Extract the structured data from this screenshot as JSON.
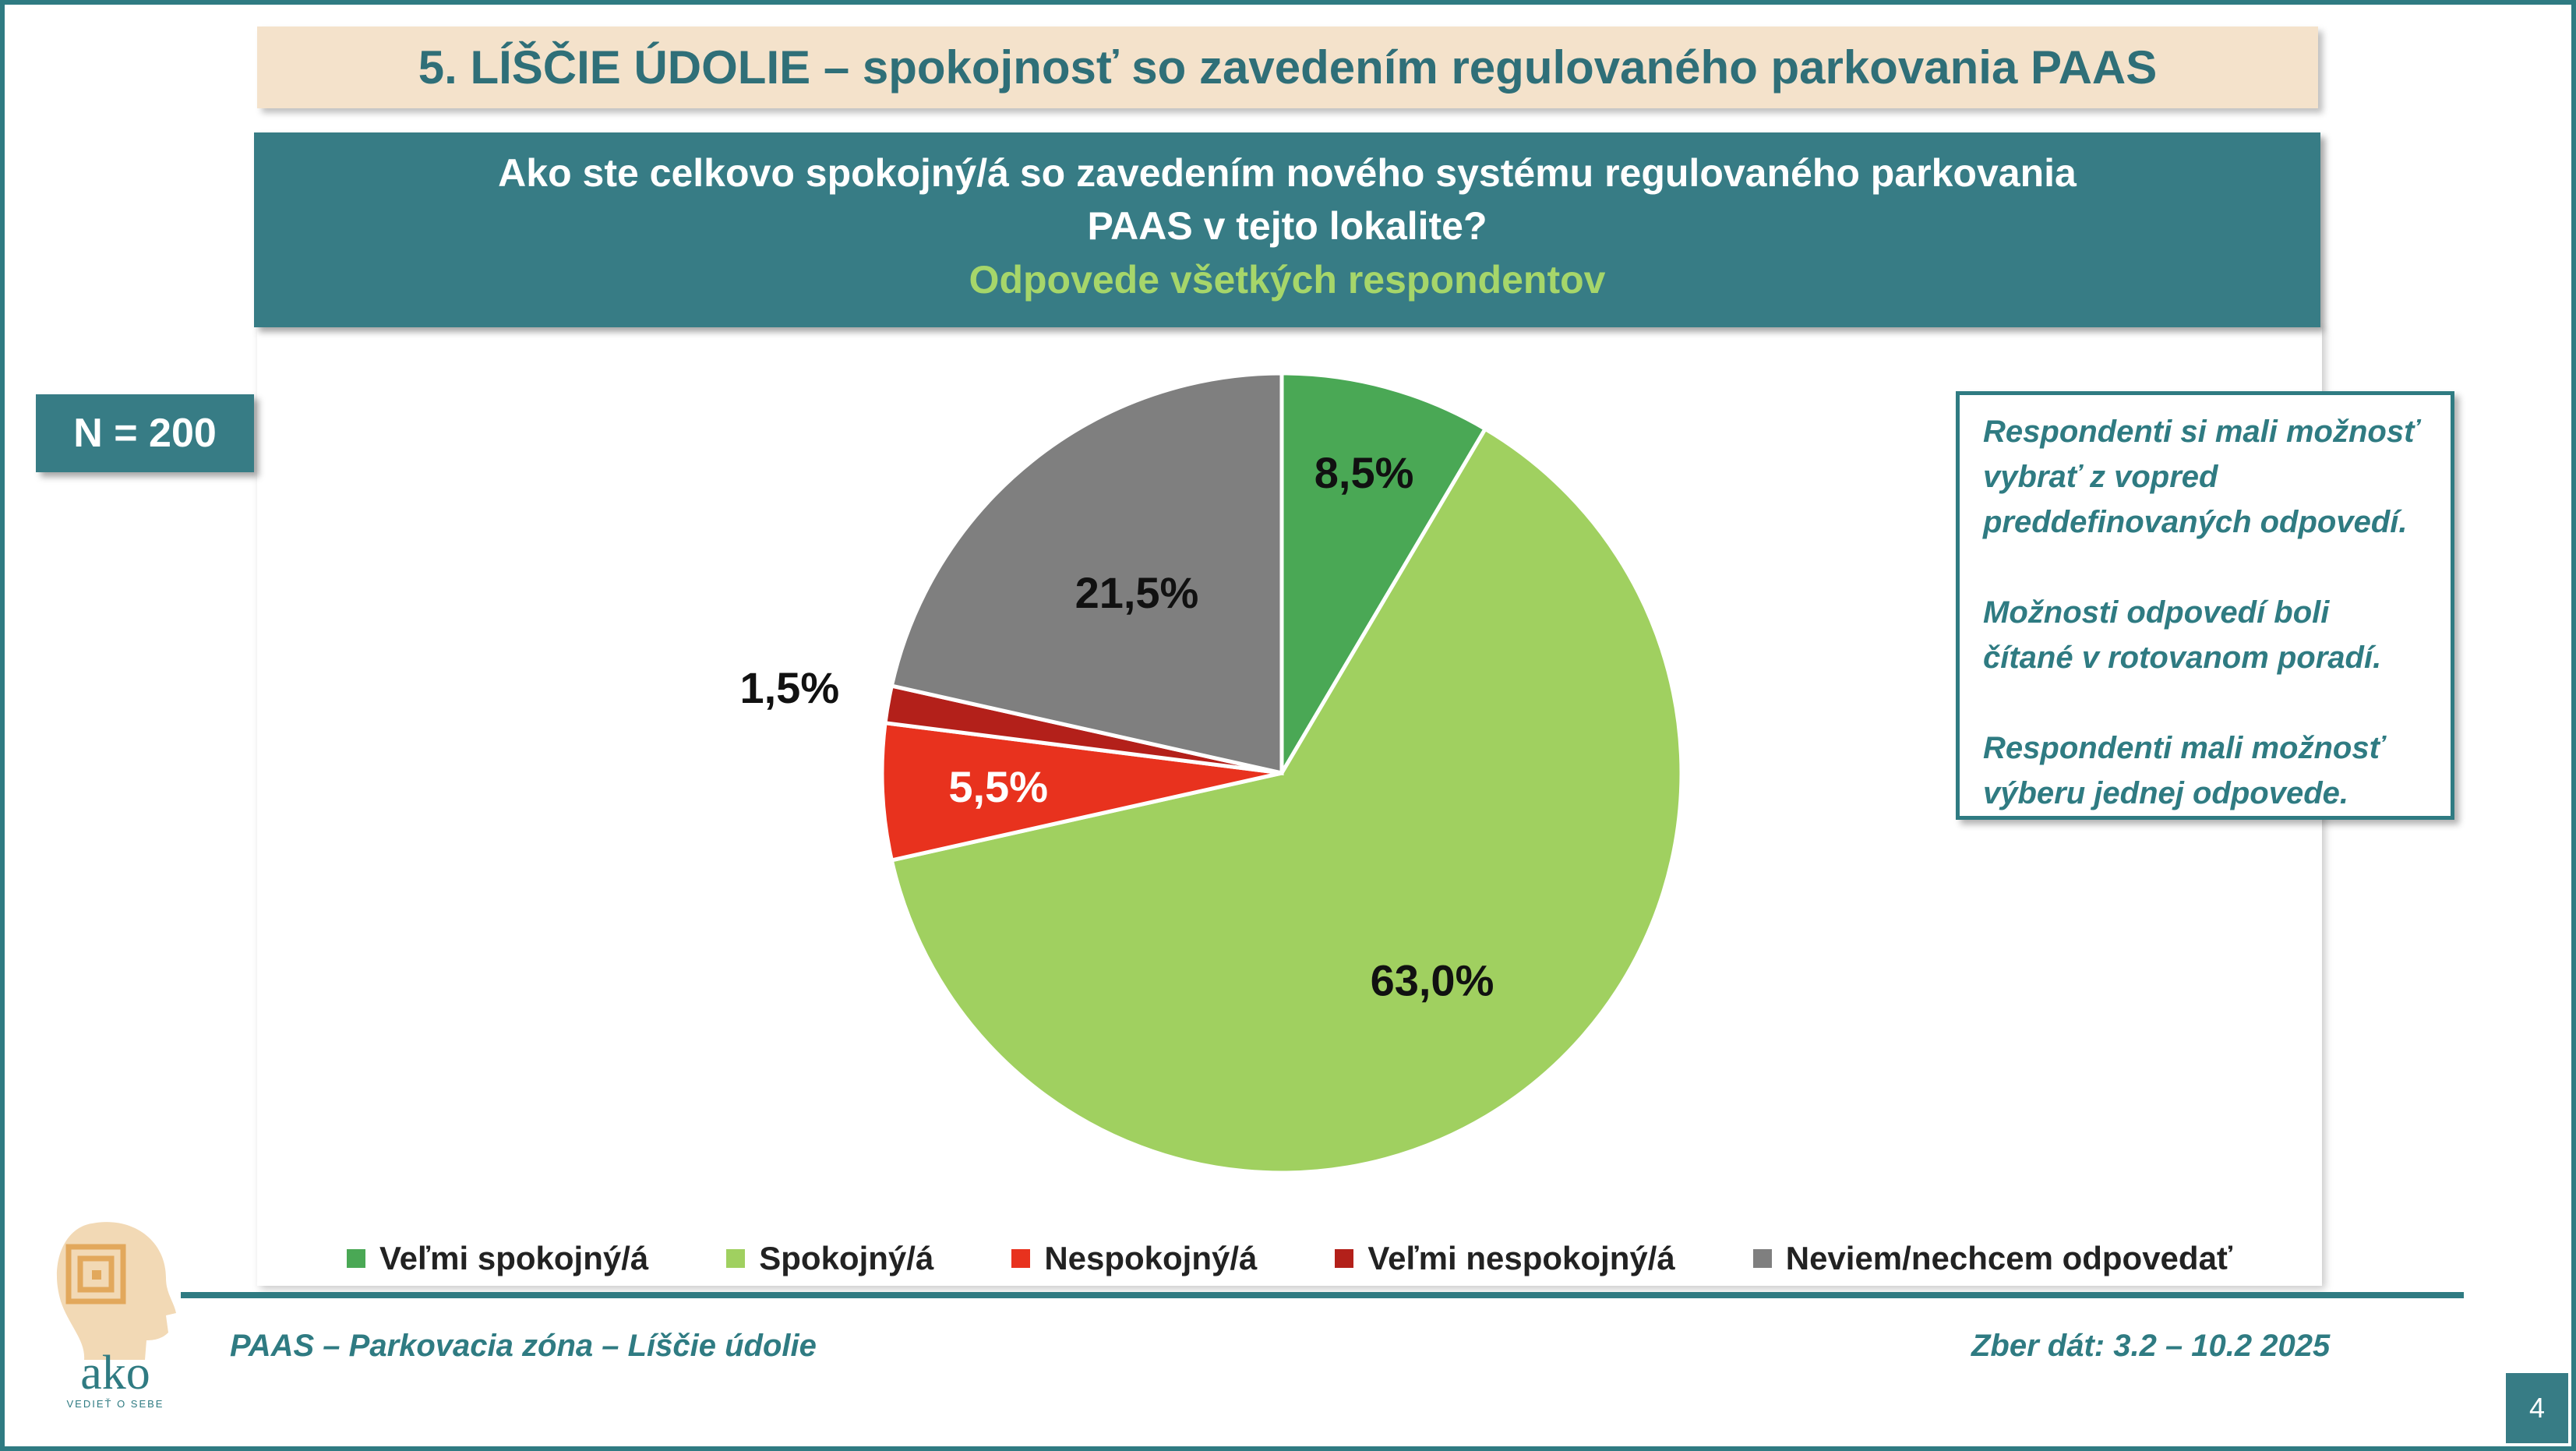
{
  "header": {
    "title": "5. LÍŠČIE ÚDOLIE – spokojnosť so zavedením  regulovaného parkovania PAAS"
  },
  "question": {
    "text": "Ako ste celkovo spokojný/á so zavedením nového systému regulovaného parkovania PAAS v tejto lokalite?",
    "subtitle": "Odpovede všetkých respondentov"
  },
  "sample": {
    "label": "N = 200"
  },
  "notes": [
    "Respondenti si mali možnosť vybrať z vopred preddefinovaných odpovedí.",
    "Možnosti odpovedí boli čítané v rotovanom poradí.",
    "Respondenti mali možnosť výberu jednej odpovede."
  ],
  "chart_data": {
    "type": "pie",
    "title": "Ako ste celkovo spokojný/á so zavedením nového systému regulovaného parkovania PAAS v tejto lokalite?",
    "legend_position": "bottom",
    "categories": [
      "Veľmi spokojný/á",
      "Spokojný/á",
      "Nespokojný/á",
      "Veľmi nespokojný/á",
      "Neviem/nechcem odpovedať"
    ],
    "values": [
      8.5,
      63.0,
      5.5,
      1.5,
      21.5
    ],
    "data_labels": [
      "8,5%",
      "63,0%",
      "5,5%",
      "1,5%",
      "21,5%"
    ],
    "colors": [
      "#4aa855",
      "#a0d060",
      "#e8321e",
      "#b3201a",
      "#7f7f7f"
    ],
    "label_colors": [
      "#111111",
      "#111111",
      "#ffffff",
      "#111111",
      "#111111"
    ]
  },
  "footer": {
    "left": "PAAS – Parkovacia zóna – Líščie údolie",
    "right": "Zber dát: 3.2 – 10.2 2025",
    "page": "4"
  },
  "logo": {
    "text": "ako",
    "tagline": "VEDIEŤ O SEBE"
  }
}
